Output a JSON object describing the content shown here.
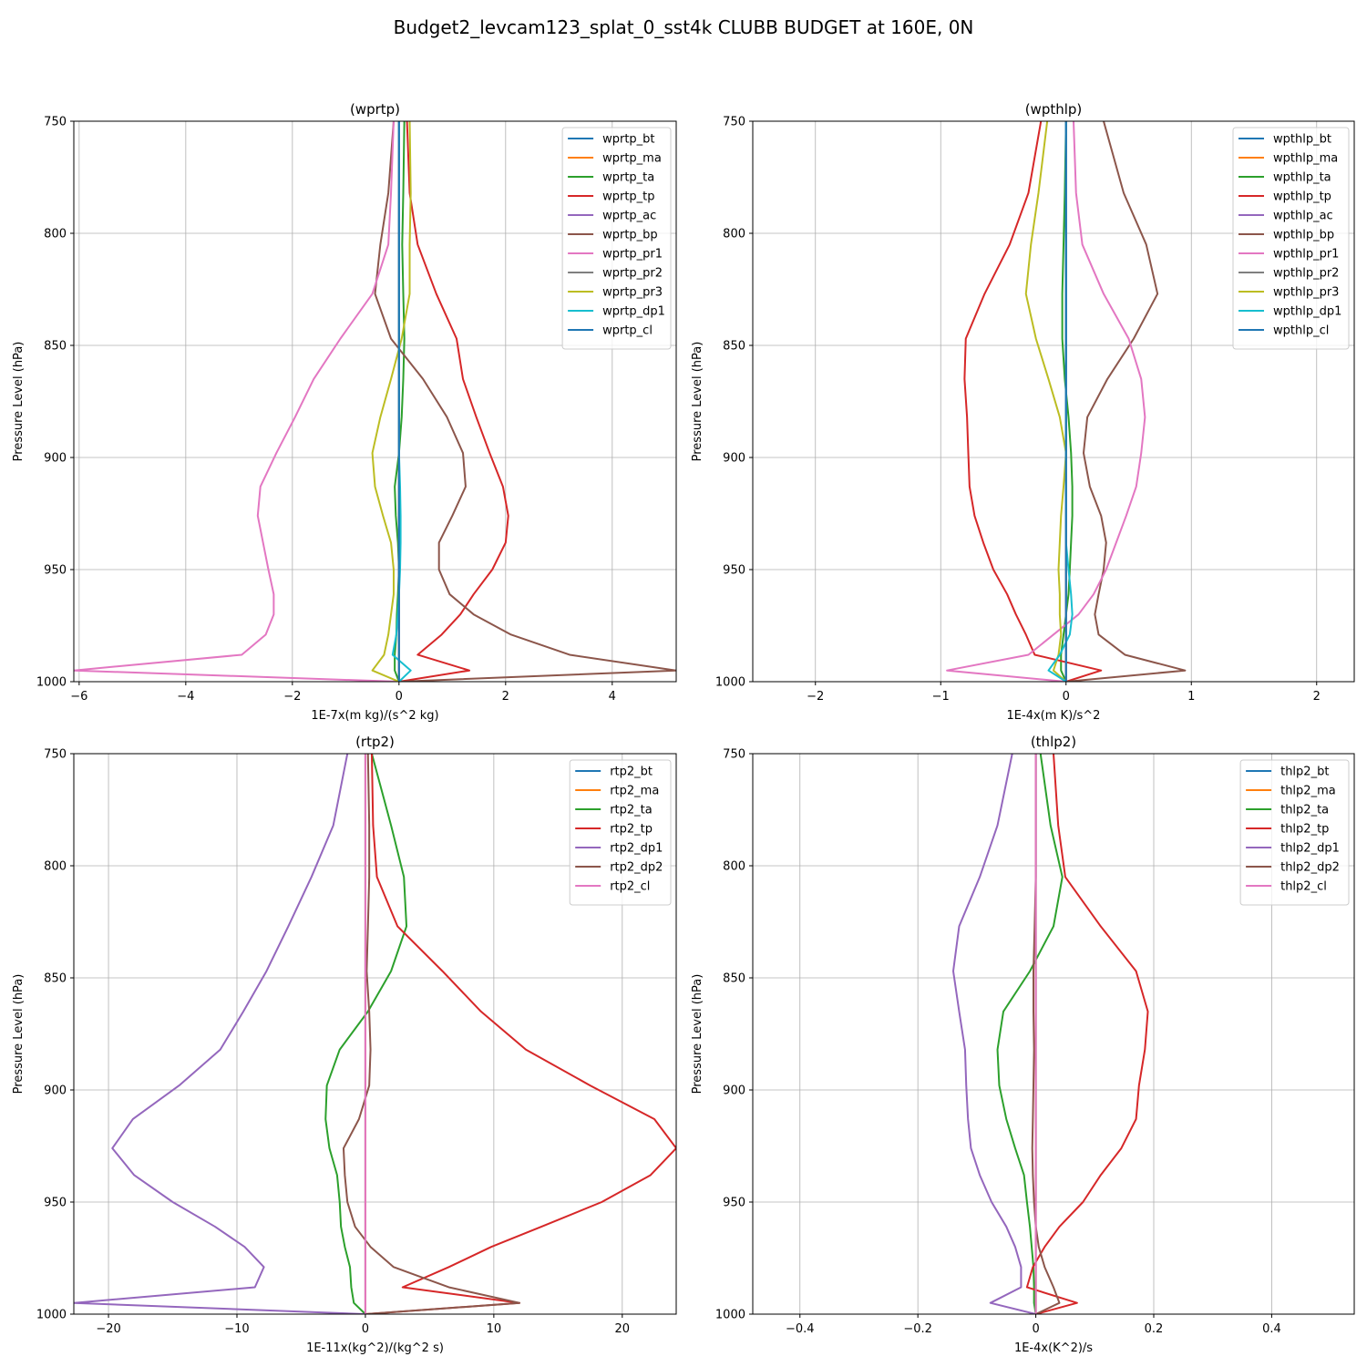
{
  "figure": {
    "title": "Budget2_levcam123_splat_0_sst4k CLUBB BUDGET at 160E, 0N"
  },
  "colors": {
    "C0": "#1f77b4",
    "C1": "#ff7f0e",
    "C2": "#2ca02c",
    "C3": "#d62728",
    "C4": "#9467bd",
    "C5": "#8c564b",
    "C6": "#e377c2",
    "C7": "#7f7f7f",
    "C8": "#bcbd22",
    "C9": "#17becf"
  },
  "chart_data": [
    {
      "type": "line",
      "title": "(wprtp)",
      "xlabel": "1E-7x(m kg)/(s^2 kg)",
      "ylabel": "Pressure Level (hPa)",
      "xlim": [
        -6.1,
        5.2
      ],
      "ylim": [
        750,
        1000
      ],
      "y_inverted": true,
      "xticks": [
        -6,
        -4,
        -2,
        0,
        2,
        4
      ],
      "yticks": [
        750,
        800,
        850,
        900,
        950,
        1000
      ],
      "grid": true,
      "legend": "upper right",
      "pressure": [
        750,
        782,
        805,
        827,
        847,
        865,
        882,
        898,
        913,
        926,
        938,
        950,
        961,
        970,
        979,
        988,
        995,
        1000
      ],
      "series": [
        {
          "name": "wprtp_bt",
          "color": "C0",
          "values": [
            0,
            0,
            0,
            0,
            0,
            0,
            0,
            0,
            0,
            0,
            0,
            0,
            0,
            0,
            0,
            0,
            0,
            0
          ]
        },
        {
          "name": "wprtp_ma",
          "color": "C1",
          "values": [
            0,
            0,
            0,
            0,
            0,
            0,
            0,
            0,
            0,
            0,
            0,
            0,
            0,
            0,
            0,
            0,
            0,
            0
          ]
        },
        {
          "name": "wprtp_ta",
          "color": "C2",
          "values": [
            0.1,
            0.08,
            0.06,
            0.08,
            0.1,
            0.08,
            0.05,
            0.0,
            -0.08,
            -0.06,
            -0.02,
            0.0,
            -0.02,
            -0.04,
            -0.05,
            -0.08,
            -0.08,
            0
          ]
        },
        {
          "name": "wprtp_tp",
          "color": "C3",
          "values": [
            0.15,
            0.2,
            0.35,
            0.7,
            1.08,
            1.2,
            1.45,
            1.7,
            1.95,
            2.05,
            2.0,
            1.75,
            1.4,
            1.15,
            0.8,
            0.35,
            1.32,
            0
          ]
        },
        {
          "name": "wprtp_ac",
          "color": "C4",
          "values": [
            0,
            0,
            0,
            0,
            0,
            0,
            0,
            0,
            0,
            0,
            0,
            0,
            0,
            0,
            0,
            0,
            0,
            0
          ]
        },
        {
          "name": "wprtp_bp",
          "color": "C5",
          "values": [
            -0.1,
            -0.2,
            -0.35,
            -0.45,
            -0.15,
            0.45,
            0.9,
            1.2,
            1.25,
            1.0,
            0.75,
            0.75,
            0.95,
            1.4,
            2.1,
            3.2,
            5.2,
            0
          ]
        },
        {
          "name": "wprtp_pr1",
          "color": "C6",
          "values": [
            -0.1,
            -0.15,
            -0.2,
            -0.5,
            -1.1,
            -1.6,
            -1.95,
            -2.3,
            -2.6,
            -2.65,
            -2.55,
            -2.45,
            -2.35,
            -2.35,
            -2.5,
            -2.95,
            -6.1,
            0
          ]
        },
        {
          "name": "wprtp_pr2",
          "color": "C7",
          "values": [
            0,
            0,
            0,
            0,
            0,
            0,
            0,
            0,
            0,
            0,
            0,
            0,
            0,
            0,
            0,
            0,
            0,
            0
          ]
        },
        {
          "name": "wprtp_pr3",
          "color": "C8",
          "values": [
            0.2,
            0.22,
            0.2,
            0.2,
            0.05,
            -0.15,
            -0.35,
            -0.5,
            -0.45,
            -0.3,
            -0.15,
            -0.1,
            -0.1,
            -0.15,
            -0.2,
            -0.28,
            -0.5,
            0
          ]
        },
        {
          "name": "wprtp_dp1",
          "color": "C9",
          "values": [
            0,
            0,
            0,
            0,
            0,
            0,
            0,
            0,
            0.02,
            0.03,
            0.03,
            0.02,
            0.0,
            -0.02,
            -0.05,
            -0.12,
            0.22,
            0
          ]
        },
        {
          "name": "wprtp_cl",
          "color": "C0",
          "values": [
            0,
            0,
            0,
            0,
            0,
            0,
            0,
            0,
            0,
            0,
            0,
            0,
            0,
            0,
            0,
            0,
            0,
            0
          ]
        }
      ]
    },
    {
      "type": "line",
      "title": "(wpthlp)",
      "xlabel": "1E-4x(m K)/s^2",
      "ylabel": "Pressure Level (hPa)",
      "xlim": [
        -2.5,
        2.3
      ],
      "ylim": [
        750,
        1000
      ],
      "y_inverted": true,
      "xticks": [
        -2,
        -1,
        0,
        1,
        2
      ],
      "yticks": [
        750,
        800,
        850,
        900,
        950,
        1000
      ],
      "grid": true,
      "legend": "upper right",
      "pressure": [
        750,
        782,
        805,
        827,
        847,
        865,
        882,
        898,
        913,
        926,
        938,
        950,
        961,
        970,
        979,
        988,
        995,
        1000
      ],
      "series": [
        {
          "name": "wpthlp_bt",
          "color": "C0",
          "values": [
            0,
            0,
            0,
            0,
            0,
            0,
            0,
            0,
            0,
            0,
            0,
            0,
            0,
            0,
            0,
            0,
            0,
            0
          ]
        },
        {
          "name": "wpthlp_ma",
          "color": "C1",
          "values": [
            0,
            0,
            0,
            0,
            0,
            0,
            0,
            0,
            0,
            0,
            0,
            0,
            0,
            0,
            0,
            0,
            0,
            0
          ]
        },
        {
          "name": "wpthlp_ta",
          "color": "C2",
          "values": [
            0.0,
            -0.01,
            -0.02,
            -0.03,
            -0.03,
            -0.01,
            0.02,
            0.04,
            0.05,
            0.05,
            0.04,
            0.03,
            0.02,
            0.0,
            -0.02,
            -0.04,
            -0.04,
            0
          ]
        },
        {
          "name": "wpthlp_tp",
          "color": "C3",
          "values": [
            -0.2,
            -0.3,
            -0.45,
            -0.65,
            -0.8,
            -0.81,
            -0.79,
            -0.78,
            -0.77,
            -0.73,
            -0.66,
            -0.58,
            -0.47,
            -0.4,
            -0.32,
            -0.25,
            0.28,
            0
          ]
        },
        {
          "name": "wpthlp_ac",
          "color": "C4",
          "values": [
            0,
            0,
            0,
            0,
            0,
            0,
            0,
            0,
            0,
            0,
            0,
            0,
            0,
            0,
            0,
            0,
            0,
            0
          ]
        },
        {
          "name": "wpthlp_bp",
          "color": "C5",
          "values": [
            0.3,
            0.46,
            0.64,
            0.73,
            0.54,
            0.33,
            0.17,
            0.14,
            0.19,
            0.28,
            0.32,
            0.3,
            0.26,
            0.23,
            0.26,
            0.47,
            0.95,
            0
          ]
        },
        {
          "name": "wpthlp_pr1",
          "color": "C6",
          "values": [
            0.06,
            0.08,
            0.13,
            0.3,
            0.5,
            0.6,
            0.63,
            0.6,
            0.56,
            0.48,
            0.4,
            0.32,
            0.22,
            0.1,
            -0.1,
            -0.3,
            -0.95,
            0
          ]
        },
        {
          "name": "wpthlp_pr2",
          "color": "C7",
          "values": [
            0,
            0,
            0,
            0,
            0,
            0,
            0,
            0,
            0,
            0,
            0,
            0,
            0,
            0,
            0,
            0,
            0,
            0
          ]
        },
        {
          "name": "wpthlp_pr3",
          "color": "C8",
          "values": [
            -0.15,
            -0.22,
            -0.28,
            -0.32,
            -0.24,
            -0.14,
            -0.05,
            0.0,
            -0.02,
            -0.04,
            -0.05,
            -0.06,
            -0.05,
            -0.05,
            -0.04,
            -0.06,
            -0.1,
            0
          ]
        },
        {
          "name": "wpthlp_dp1",
          "color": "C9",
          "values": [
            0,
            0,
            0,
            0,
            0,
            0,
            0,
            0,
            0,
            0,
            0.0,
            0.02,
            0.04,
            0.05,
            0.03,
            -0.05,
            -0.14,
            0
          ]
        },
        {
          "name": "wpthlp_cl",
          "color": "C0",
          "values": [
            0,
            0,
            0,
            0,
            0,
            0,
            0,
            0,
            0,
            0,
            0,
            0,
            0,
            0,
            0,
            0,
            0,
            0
          ]
        }
      ]
    },
    {
      "type": "line",
      "title": "(rtp2)",
      "xlabel": "1E-11x(kg^2)/(kg^2 s)",
      "ylabel": "Pressure Level (hPa)",
      "xlim": [
        -22.7,
        24.2
      ],
      "ylim": [
        750,
        1000
      ],
      "y_inverted": true,
      "xticks": [
        -20,
        -10,
        0,
        10,
        20
      ],
      "yticks": [
        750,
        800,
        850,
        900,
        950,
        1000
      ],
      "grid": true,
      "legend": "upper right",
      "pressure": [
        750,
        782,
        805,
        827,
        847,
        865,
        882,
        898,
        913,
        926,
        938,
        950,
        961,
        970,
        979,
        988,
        995,
        1000
      ],
      "series": [
        {
          "name": "rtp2_bt",
          "color": "C0",
          "values": [
            0,
            0,
            0,
            0,
            0,
            0,
            0,
            0,
            0,
            0,
            0,
            0,
            0,
            0,
            0,
            0,
            0,
            0
          ]
        },
        {
          "name": "rtp2_ma",
          "color": "C1",
          "values": [
            0,
            0,
            0,
            0,
            0,
            0,
            0,
            0,
            0,
            0,
            0,
            0,
            0,
            0,
            0,
            0,
            0,
            0
          ]
        },
        {
          "name": "rtp2_ta",
          "color": "C2",
          "values": [
            0.5,
            2.0,
            3.0,
            3.2,
            2.0,
            0.2,
            -2.0,
            -3.0,
            -3.1,
            -2.8,
            -2.2,
            -2.0,
            -1.9,
            -1.6,
            -1.2,
            -1.1,
            -0.9,
            0
          ]
        },
        {
          "name": "rtp2_tp",
          "color": "C3",
          "values": [
            0.5,
            0.6,
            0.9,
            2.5,
            6.0,
            9.0,
            12.5,
            17.5,
            22.5,
            24.2,
            22.2,
            18.4,
            13.7,
            9.8,
            6.5,
            2.9,
            12.0,
            0
          ]
        },
        {
          "name": "rtp2_dp1",
          "color": "C4",
          "values": [
            -1.4,
            -2.5,
            -4.2,
            -6.0,
            -7.7,
            -9.5,
            -11.3,
            -14.5,
            -18.1,
            -19.7,
            -18.0,
            -15.0,
            -11.7,
            -9.4,
            -7.9,
            -8.6,
            -22.7,
            0
          ]
        },
        {
          "name": "rtp2_dp2",
          "color": "C5",
          "values": [
            0.2,
            0.3,
            0.3,
            0.2,
            0.1,
            0.3,
            0.4,
            0.3,
            -0.5,
            -1.7,
            -1.6,
            -1.4,
            -0.8,
            0.4,
            2.2,
            6.5,
            12.0,
            0
          ]
        },
        {
          "name": "rtp2_cl",
          "color": "C6",
          "values": [
            0,
            0,
            0,
            0,
            0,
            0,
            0,
            0,
            0,
            0,
            0,
            0,
            0,
            0,
            0,
            0,
            0,
            0
          ]
        }
      ]
    },
    {
      "type": "line",
      "title": "(thlp2)",
      "xlabel": "1E-4x(K^2)/s",
      "ylabel": "Pressure Level (hPa)",
      "xlim": [
        -0.48,
        0.54
      ],
      "ylim": [
        750,
        1000
      ],
      "y_inverted": true,
      "xticks": [
        -0.4,
        -0.2,
        0.0,
        0.2,
        0.4
      ],
      "yticks": [
        750,
        800,
        850,
        900,
        950,
        1000
      ],
      "grid": true,
      "legend": "upper right",
      "pressure": [
        750,
        782,
        805,
        827,
        847,
        865,
        882,
        898,
        913,
        926,
        938,
        950,
        961,
        970,
        979,
        988,
        995,
        1000
      ],
      "series": [
        {
          "name": "thlp2_bt",
          "color": "C0",
          "values": [
            0,
            0,
            0,
            0,
            0,
            0,
            0,
            0,
            0,
            0,
            0,
            0,
            0,
            0,
            0,
            0,
            0,
            0
          ]
        },
        {
          "name": "thlp2_ma",
          "color": "C1",
          "values": [
            0,
            0,
            0,
            0,
            0,
            0,
            0,
            0,
            0,
            0,
            0,
            0,
            0,
            0,
            0,
            0,
            0,
            0
          ]
        },
        {
          "name": "thlp2_ta",
          "color": "C2",
          "values": [
            0.008,
            0.025,
            0.045,
            0.03,
            -0.01,
            -0.055,
            -0.065,
            -0.062,
            -0.05,
            -0.035,
            -0.02,
            -0.015,
            -0.01,
            -0.007,
            -0.004,
            -0.003,
            -0.003,
            0
          ]
        },
        {
          "name": "thlp2_tp",
          "color": "C3",
          "values": [
            0.03,
            0.038,
            0.05,
            0.11,
            0.17,
            0.19,
            0.185,
            0.175,
            0.17,
            0.145,
            0.11,
            0.08,
            0.04,
            0.015,
            -0.005,
            -0.015,
            0.07,
            0
          ]
        },
        {
          "name": "thlp2_dp1",
          "color": "C4",
          "values": [
            -0.04,
            -0.065,
            -0.095,
            -0.13,
            -0.14,
            -0.13,
            -0.12,
            -0.118,
            -0.115,
            -0.11,
            -0.095,
            -0.075,
            -0.05,
            -0.035,
            -0.025,
            -0.025,
            -0.077,
            0
          ]
        },
        {
          "name": "thlp2_dp2",
          "color": "C5",
          "values": [
            0.0,
            0.0,
            0.0,
            -0.002,
            -0.004,
            -0.004,
            -0.003,
            -0.004,
            -0.005,
            -0.006,
            -0.005,
            -0.003,
            0.0,
            0.005,
            0.015,
            0.03,
            0.04,
            0
          ]
        },
        {
          "name": "thlp2_cl",
          "color": "C6",
          "values": [
            0,
            0,
            0,
            0,
            0,
            0,
            0,
            0,
            0,
            0,
            0,
            0,
            0,
            0,
            0,
            0,
            0,
            0
          ]
        }
      ]
    }
  ]
}
